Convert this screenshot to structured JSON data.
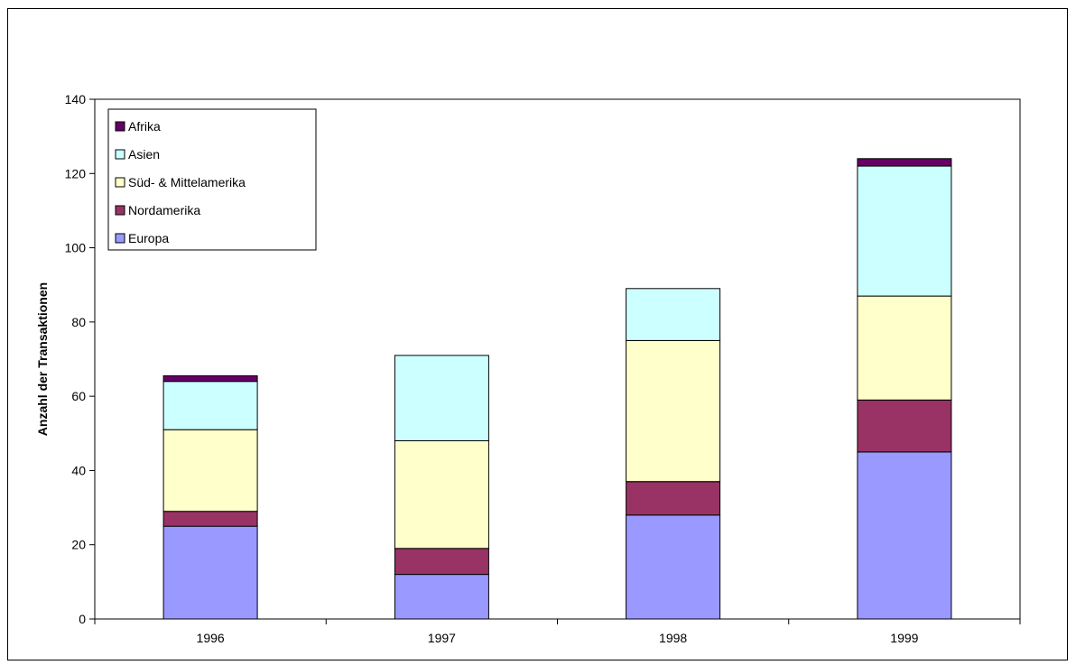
{
  "chart_data": {
    "type": "bar",
    "stacked": true,
    "categories": [
      "1996",
      "1997",
      "1998",
      "1999"
    ],
    "series": [
      {
        "name": "Europa",
        "color": "#9999FF",
        "values": [
          25,
          12,
          28,
          45
        ]
      },
      {
        "name": "Nordamerika",
        "color": "#993366",
        "values": [
          4,
          7,
          9,
          14
        ]
      },
      {
        "name": "Süd- & Mittelamerika",
        "color": "#FFFFCC",
        "values": [
          22,
          29,
          38,
          28
        ]
      },
      {
        "name": "Asien",
        "color": "#CCFFFF",
        "values": [
          13,
          23,
          14,
          35
        ]
      },
      {
        "name": "Afrika",
        "color": "#660066",
        "values": [
          1.5,
          0,
          0,
          2
        ]
      }
    ],
    "title": "",
    "xlabel": "",
    "ylabel": "Anzahl der Transaktionen",
    "ylim": [
      0,
      140
    ],
    "yticks": [
      0,
      20,
      40,
      60,
      80,
      100,
      120,
      140
    ],
    "grid": false,
    "legend_position": "top-left",
    "legend_order": [
      "Afrika",
      "Asien",
      "Süd- & Mittelamerika",
      "Nordamerika",
      "Europa"
    ]
  }
}
